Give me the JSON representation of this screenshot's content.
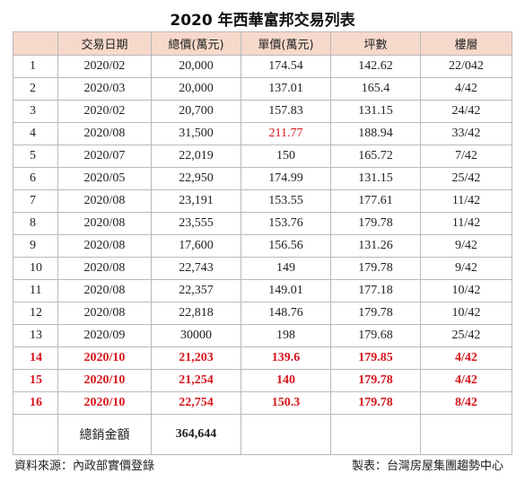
{
  "title": "2020 年西華富邦交易列表",
  "colors": {
    "header_bg": "#f7d9cb",
    "highlight": "#d8141b",
    "border": "#b9b9b9"
  },
  "headers": [
    "",
    "交易日期",
    "總價(萬元)",
    "單價(萬元)",
    "坪數",
    "樓層"
  ],
  "rows": [
    {
      "no": "1",
      "date": "2020/02",
      "total": "20,000",
      "unit": "174.54",
      "area": "142.62",
      "floor": "22/042"
    },
    {
      "no": "2",
      "date": "2020/03",
      "total": "20,000",
      "unit": "137.01",
      "area": "165.4",
      "floor": "4/42"
    },
    {
      "no": "3",
      "date": "2020/02",
      "total": "20,700",
      "unit": "157.83",
      "area": "131.15",
      "floor": "24/42"
    },
    {
      "no": "4",
      "date": "2020/08",
      "total": "31,500",
      "unit": "211.77",
      "area": "188.94",
      "floor": "33/42",
      "unit_red": true
    },
    {
      "no": "5",
      "date": "2020/07",
      "total": "22,019",
      "unit": "150",
      "area": "165.72",
      "floor": "7/42"
    },
    {
      "no": "6",
      "date": "2020/05",
      "total": "22,950",
      "unit": "174.99",
      "area": "131.15",
      "floor": "25/42"
    },
    {
      "no": "7",
      "date": "2020/08",
      "total": "23,191",
      "unit": "153.55",
      "area": "177.61",
      "floor": "11/42"
    },
    {
      "no": "8",
      "date": "2020/08",
      "total": "23,555",
      "unit": "153.76",
      "area": "179.78",
      "floor": "11/42"
    },
    {
      "no": "9",
      "date": "2020/08",
      "total": "17,600",
      "unit": "156.56",
      "area": "131.26",
      "floor": "9/42"
    },
    {
      "no": "10",
      "date": "2020/08",
      "total": "22,743",
      "unit": "149",
      "area": "179.78",
      "floor": "9/42"
    },
    {
      "no": "11",
      "date": "2020/08",
      "total": "22,357",
      "unit": "149.01",
      "area": "177.18",
      "floor": "10/42"
    },
    {
      "no": "12",
      "date": "2020/08",
      "total": "22,818",
      "unit": "148.76",
      "area": "179.78",
      "floor": "10/42"
    },
    {
      "no": "13",
      "date": "2020/09",
      "total": "30000",
      "unit": "198",
      "area": "179.68",
      "floor": "25/42"
    },
    {
      "no": "14",
      "date": "2020/10",
      "total": "21,203",
      "unit": "139.6",
      "area": "179.85",
      "floor": "4/42",
      "highlight": true
    },
    {
      "no": "15",
      "date": "2020/10",
      "total": "21,254",
      "unit": "140",
      "area": "179.78",
      "floor": "4/42",
      "highlight": true
    },
    {
      "no": "16",
      "date": "2020/10",
      "total": "22,754",
      "unit": "150.3",
      "area": "179.78",
      "floor": "8/42",
      "highlight": true
    }
  ],
  "total": {
    "label": "總銷金額",
    "value": "364,644"
  },
  "footer": {
    "source": "資料來源：內政部實價登錄",
    "credit": "製表：台灣房屋集團趨勢中心"
  }
}
